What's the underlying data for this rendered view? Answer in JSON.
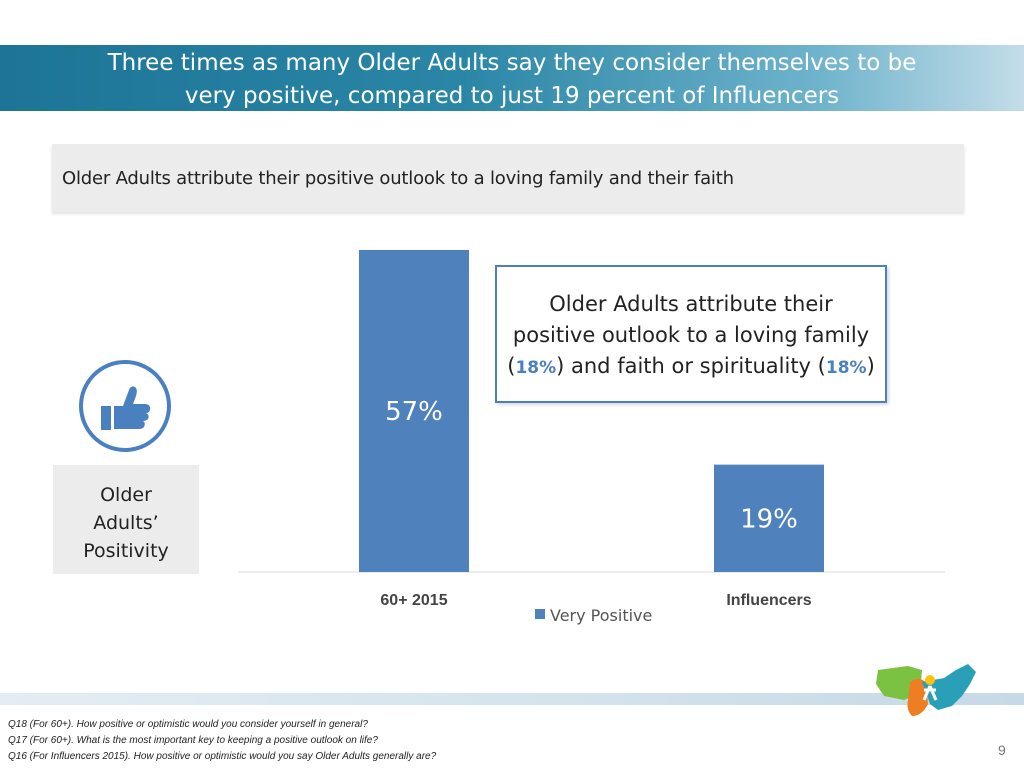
{
  "header": {
    "title_line1": "Three times as many Older Adults say they consider themselves to be",
    "title_line2": "very positive, compared to just 19 percent of Influencers"
  },
  "subtitle": "Older Adults attribute their positive outlook to a loving family and their faith",
  "side_label": "Older\nAdults’\nPositivity",
  "callout": {
    "line1": "Older Adults attribute their",
    "line2": "positive outlook to a loving family",
    "line3_pre": "(",
    "family_pct": "18%",
    "line3_mid": ") and faith or spirituality (",
    "faith_pct": "18%",
    "line3_post": ")"
  },
  "chart_data": {
    "type": "bar",
    "categories": [
      "60+ 2015",
      "Influencers"
    ],
    "series": [
      {
        "name": "Very Positive",
        "values": [
          57,
          19
        ],
        "color": "#4f81bd"
      }
    ],
    "data_labels": [
      "57%",
      "19%"
    ],
    "ylim": [
      0,
      60
    ],
    "grid": false,
    "legend": "bottom"
  },
  "footnotes": [
    "Q18 (For 60+). How positive or optimistic would you consider yourself in general?",
    "Q17 (For 60+). What is the most important key to keeping a positive outlook on life?",
    "Q16 (For Influencers 2015). How positive or optimistic would you say Older Adults generally are?"
  ],
  "page_number": "9",
  "colors": {
    "accent": "#4a7fc0",
    "title_bar": "#1d7496"
  },
  "icons": {
    "thumb": "thumbs-up-icon",
    "logo": "us-map-logo"
  }
}
